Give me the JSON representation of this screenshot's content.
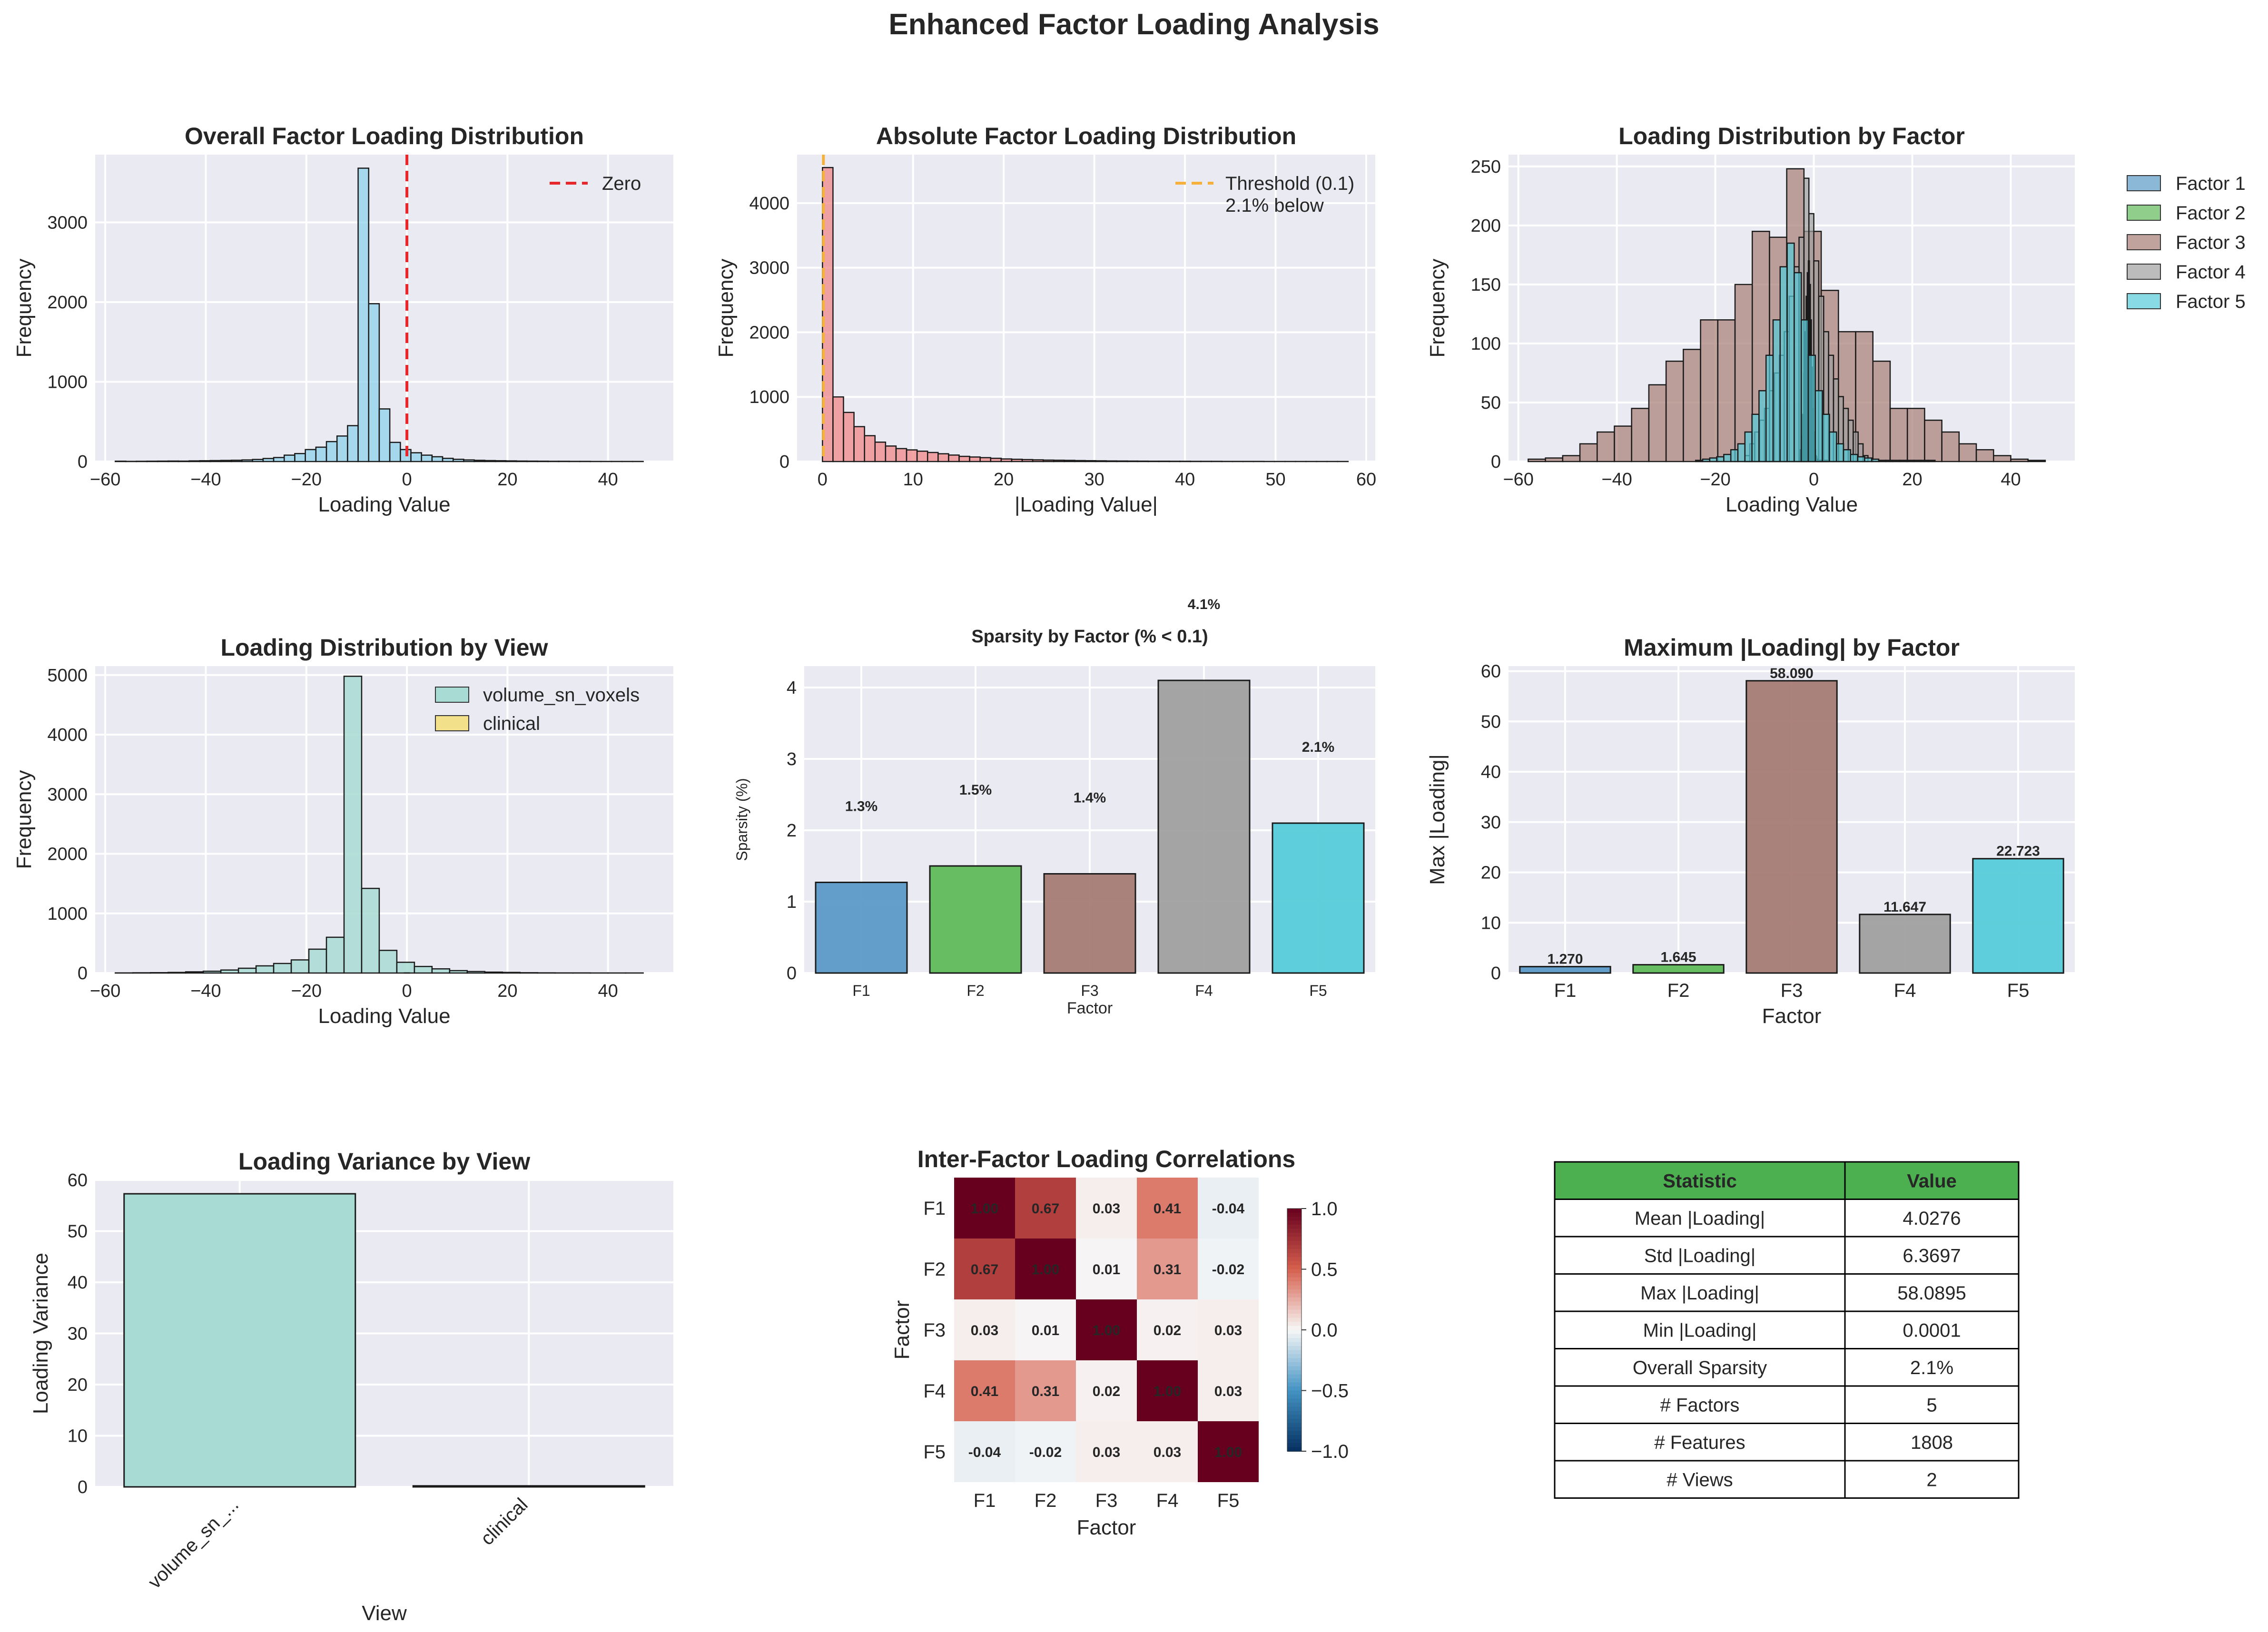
{
  "suptitle": "Enhanced Factor Loading Analysis",
  "colors": {
    "factor1": "#5b9ac6",
    "factor2": "#5fba5a",
    "factor3": "#a67c75",
    "factor4": "#a0a0a0",
    "factor5": "#56ccda",
    "overall_hist": "#87ceeb",
    "abs_hist": "#f08080",
    "volume": "#a8dbd4",
    "clinical": "#f2e08a",
    "zero_line": "#e8272c",
    "threshold_line": "#f5b13c",
    "table_header": "#4caf50"
  },
  "chart_data": [
    {
      "id": "overall",
      "type": "bar",
      "title": "Overall Factor Loading Distribution",
      "xlabel": "Loading Value",
      "ylabel": "Frequency",
      "xlim": [
        -62,
        53
      ],
      "ylim": [
        0,
        3850
      ],
      "xticks": [
        -60,
        -40,
        -20,
        0,
        20,
        40
      ],
      "xtick_labels": [
        "−60",
        "−40",
        "−20",
        "0",
        "20",
        "40"
      ],
      "yticks": [
        0,
        1000,
        2000,
        3000
      ],
      "ytick_labels": [
        "0",
        "1000",
        "2000",
        "3000"
      ],
      "bin_start": -58,
      "bin_width": 2.1,
      "values": [
        4,
        2,
        3,
        4,
        5,
        6,
        5,
        8,
        10,
        12,
        14,
        16,
        20,
        26,
        38,
        50,
        80,
        100,
        150,
        180,
        250,
        320,
        450,
        3680,
        1980,
        660,
        240,
        150,
        110,
        80,
        60,
        40,
        28,
        20,
        15,
        12,
        10,
        8,
        6,
        5,
        4,
        3,
        3,
        2,
        2,
        1,
        1,
        1,
        1,
        1
      ],
      "vline": 0,
      "legend": [
        "Zero"
      ],
      "legend_position": "top-right",
      "grid": true
    },
    {
      "id": "absolute",
      "type": "bar",
      "title": "Absolute Factor Loading Distribution",
      "xlabel": "|Loading Value|",
      "ylabel": "Frequency",
      "xlim": [
        -2.8,
        61
      ],
      "ylim": [
        0,
        4750
      ],
      "xticks": [
        0,
        10,
        20,
        30,
        40,
        50,
        60
      ],
      "xtick_labels": [
        "0",
        "10",
        "20",
        "30",
        "40",
        "50",
        "60"
      ],
      "yticks": [
        0,
        1000,
        2000,
        3000,
        4000
      ],
      "ytick_labels": [
        "0",
        "1000",
        "2000",
        "3000",
        "4000"
      ],
      "bin_start": 0,
      "bin_width": 1.16,
      "values": [
        4550,
        1000,
        760,
        540,
        400,
        300,
        240,
        200,
        180,
        160,
        140,
        120,
        100,
        80,
        70,
        60,
        50,
        40,
        35,
        30,
        26,
        22,
        20,
        18,
        15,
        13,
        11,
        9,
        8,
        7,
        6,
        5,
        5,
        4,
        4,
        3,
        3,
        3,
        2,
        2,
        2,
        2,
        1,
        1,
        1,
        1,
        1,
        1,
        1,
        1
      ],
      "vline": 0.1,
      "legend": [
        "Threshold (0.1)",
        "2.1% below"
      ],
      "legend_position": "top-right",
      "grid": true
    },
    {
      "id": "by_factor",
      "type": "bar",
      "title": "Loading Distribution by Factor",
      "xlabel": "Loading Value",
      "ylabel": "Frequency",
      "xlim": [
        -62,
        53
      ],
      "ylim": [
        0,
        260
      ],
      "xticks": [
        -60,
        -40,
        -20,
        0,
        20,
        40
      ],
      "xtick_labels": [
        "−60",
        "−40",
        "−20",
        "0",
        "20",
        "40"
      ],
      "yticks": [
        0,
        50,
        100,
        150,
        200,
        250
      ],
      "ytick_labels": [
        "0",
        "50",
        "100",
        "150",
        "200",
        "250"
      ],
      "legend_position": "outside-right",
      "grid": true,
      "series": [
        {
          "name": "Factor 1",
          "start": -2.5,
          "width": 0.2,
          "values": [
            5,
            12,
            25,
            45,
            80,
            120,
            150,
            170,
            150,
            120,
            80,
            45,
            25,
            12,
            5,
            2,
            1,
            1,
            1,
            1,
            1,
            1,
            1,
            1,
            1
          ]
        },
        {
          "name": "Factor 2",
          "start": -3,
          "width": 0.24,
          "values": [
            4,
            10,
            22,
            40,
            75,
            110,
            140,
            160,
            140,
            110,
            75,
            40,
            22,
            10,
            4,
            2,
            1,
            1,
            1,
            1,
            1,
            1,
            1,
            1,
            1
          ]
        },
        {
          "name": "Factor 3",
          "start": -58,
          "width": 3.5,
          "values": [
            2,
            3,
            5,
            15,
            25,
            30,
            45,
            65,
            85,
            95,
            120,
            120,
            150,
            195,
            190,
            248,
            195,
            145,
            110,
            110,
            85,
            45,
            45,
            35,
            25,
            15,
            10,
            5,
            2,
            1
          ]
        },
        {
          "name": "Factor 4",
          "start": -14,
          "width": 1.0,
          "values": [
            5,
            15,
            25,
            35,
            45,
            60,
            75,
            90,
            110,
            140,
            165,
            190,
            240,
            210,
            170,
            140,
            110,
            90,
            70,
            55,
            45,
            35,
            25,
            15,
            5
          ]
        },
        {
          "name": "Factor 5",
          "start": -24,
          "width": 1.43,
          "values": [
            1,
            2,
            3,
            4,
            6,
            10,
            15,
            25,
            40,
            60,
            90,
            120,
            165,
            185,
            160,
            120,
            90,
            60,
            40,
            25,
            15,
            10,
            6,
            4,
            3,
            2,
            1,
            1,
            1,
            1,
            1,
            1,
            1,
            1
          ]
        }
      ]
    },
    {
      "id": "by_view",
      "type": "bar",
      "title": "Loading Distribution by View",
      "xlabel": "Loading Value",
      "ylabel": "Frequency",
      "xlim": [
        -62,
        53
      ],
      "ylim": [
        0,
        5150
      ],
      "xticks": [
        -60,
        -40,
        -20,
        0,
        20,
        40
      ],
      "xtick_labels": [
        "−60",
        "−40",
        "−20",
        "0",
        "20",
        "40"
      ],
      "yticks": [
        0,
        1000,
        2000,
        3000,
        4000,
        5000
      ],
      "ytick_labels": [
        "0",
        "1000",
        "2000",
        "3000",
        "4000",
        "5000"
      ],
      "legend_position": "top-right",
      "grid": true,
      "series": [
        {
          "name": "volume_sn_voxels",
          "start": -58,
          "width": 3.5,
          "values": [
            2,
            4,
            6,
            10,
            20,
            30,
            50,
            80,
            120,
            160,
            220,
            400,
            600,
            4980,
            1420,
            380,
            180,
            110,
            70,
            40,
            25,
            15,
            10,
            5,
            3,
            2,
            2,
            1,
            1,
            1
          ]
        },
        {
          "name": "clinical",
          "start": -0.5,
          "width": 1,
          "values": [
            2
          ]
        }
      ]
    },
    {
      "id": "sparsity",
      "type": "bar",
      "title": "Sparsity by Factor (% < 0.1)",
      "xlabel": "Factor",
      "ylabel": "Sparsity (%)",
      "categories": [
        "F1",
        "F2",
        "F3",
        "F4",
        "F5"
      ],
      "values": [
        1.27,
        1.5,
        1.39,
        4.1,
        2.1
      ],
      "data_labels": [
        "1.3%",
        "1.5%",
        "1.4%",
        "4.1%",
        "2.1%"
      ],
      "ylim": [
        0,
        4.3
      ],
      "yticks": [
        0,
        1,
        2,
        3,
        4
      ],
      "ytick_labels": [
        "0",
        "1",
        "2",
        "3",
        "4"
      ],
      "grid": true
    },
    {
      "id": "max_loading",
      "type": "bar",
      "title": "Maximum |Loading| by Factor",
      "xlabel": "Factor",
      "ylabel": "Max |Loading|",
      "categories": [
        "F1",
        "F2",
        "F3",
        "F4",
        "F5"
      ],
      "values": [
        1.27,
        1.645,
        58.09,
        11.647,
        22.723
      ],
      "data_labels": [
        "1.270",
        "1.645",
        "58.090",
        "11.647",
        "22.723"
      ],
      "ylim": [
        0,
        61
      ],
      "yticks": [
        0,
        10,
        20,
        30,
        40,
        50,
        60
      ],
      "ytick_labels": [
        "0",
        "10",
        "20",
        "30",
        "40",
        "50",
        "60"
      ],
      "grid": true
    },
    {
      "id": "variance",
      "type": "bar",
      "title": "Loading Variance by View",
      "xlabel": "View",
      "ylabel": "Loading Variance",
      "categories": [
        "volume_sn_...",
        "clinical"
      ],
      "values": [
        57.3,
        0.2
      ],
      "ylim": [
        0,
        60
      ],
      "yticks": [
        0,
        10,
        20,
        30,
        40,
        50,
        60
      ],
      "ytick_labels": [
        "0",
        "10",
        "20",
        "30",
        "40",
        "50",
        "60"
      ],
      "grid": true
    },
    {
      "id": "correlation",
      "type": "heatmap",
      "title": "Inter-Factor Loading Correlations",
      "xlabel": "Factor",
      "ylabel": "Factor",
      "rows": [
        "F1",
        "F2",
        "F3",
        "F4",
        "F5"
      ],
      "cols": [
        "F1",
        "F2",
        "F3",
        "F4",
        "F5"
      ],
      "values": [
        [
          1.0,
          0.67,
          0.03,
          0.41,
          -0.04
        ],
        [
          0.67,
          1.0,
          0.01,
          0.31,
          -0.02
        ],
        [
          0.03,
          0.01,
          1.0,
          0.02,
          0.03
        ],
        [
          0.41,
          0.31,
          0.02,
          1.0,
          0.03
        ],
        [
          -0.04,
          -0.02,
          0.03,
          0.03,
          1.0
        ]
      ],
      "cell_labels": [
        [
          "1.00",
          "0.67",
          "0.03",
          "0.41",
          "-0.04"
        ],
        [
          "0.67",
          "1.00",
          "0.01",
          "0.31",
          "-0.02"
        ],
        [
          "0.03",
          "0.01",
          "1.00",
          "0.02",
          "0.03"
        ],
        [
          "0.41",
          "0.31",
          "0.02",
          "1.00",
          "0.03"
        ],
        [
          "-0.04",
          "-0.02",
          "0.03",
          "0.03",
          "1.00"
        ]
      ],
      "vmin": -1,
      "vmax": 1,
      "colorbar_ticks": [
        1.0,
        0.5,
        0.0,
        -0.5,
        -1.0
      ],
      "colorbar_tick_labels": [
        "1.0",
        "0.5",
        "0.0",
        "−0.5",
        "−1.0"
      ]
    },
    {
      "id": "stats_table",
      "type": "table",
      "header": [
        "Statistic",
        "Value"
      ],
      "rows": [
        [
          "Mean |Loading|",
          "4.0276"
        ],
        [
          "Std |Loading|",
          "6.3697"
        ],
        [
          "Max |Loading|",
          "58.0895"
        ],
        [
          "Min |Loading|",
          "0.0001"
        ],
        [
          "Overall Sparsity",
          "2.1%"
        ],
        [
          "# Factors",
          "5"
        ],
        [
          "# Features",
          "1808"
        ],
        [
          "# Views",
          "2"
        ]
      ]
    }
  ]
}
